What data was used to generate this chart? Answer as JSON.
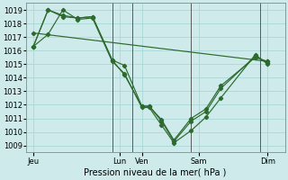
{
  "xlabel": "Pression niveau de la mer( hPa )",
  "bg_color": "#ceeaea",
  "grid_color": "#a8d8d8",
  "line_color": "#2d6a2d",
  "vline_color": "#5a5a5a",
  "ylim": [
    1008.5,
    1019.5
  ],
  "yticks": [
    1009,
    1010,
    1011,
    1012,
    1013,
    1014,
    1015,
    1016,
    1017,
    1018,
    1019
  ],
  "xlim": [
    0,
    10.5
  ],
  "day_labels": [
    "Jeu",
    "Lun",
    "Ven",
    "Sam",
    "Dim"
  ],
  "day_positions": [
    0.3,
    3.8,
    4.7,
    7.0,
    9.8
  ],
  "vline_positions": [
    3.5,
    4.3,
    6.7,
    9.5
  ],
  "series_x": [
    [
      0.3,
      0.9,
      1.5,
      2.1,
      2.7,
      3.5,
      4.0,
      4.7,
      5.0,
      5.5,
      6.0,
      6.7,
      7.3,
      7.9,
      9.3,
      9.8
    ],
    [
      0.3,
      0.9,
      1.5,
      2.1,
      2.7,
      3.5,
      4.0,
      4.7,
      5.0,
      5.5,
      6.0,
      6.7,
      7.3,
      7.9,
      9.3,
      9.8
    ],
    [
      0.3,
      0.9,
      1.5,
      2.1,
      2.7,
      3.5,
      4.0,
      4.7,
      5.0,
      5.5,
      6.0,
      6.7,
      7.3,
      7.9,
      9.3,
      9.8
    ],
    [
      0.3,
      9.8
    ]
  ],
  "series_y": [
    [
      1016.3,
      1017.2,
      1019.0,
      1018.3,
      1018.4,
      1015.2,
      1014.3,
      1011.8,
      1011.8,
      1010.5,
      1009.2,
      1010.1,
      1011.1,
      1012.5,
      1015.7,
      1015.0
    ],
    [
      1016.3,
      1019.0,
      1018.5,
      1018.4,
      1018.5,
      1015.3,
      1014.9,
      1011.9,
      1011.9,
      1010.8,
      1009.3,
      1010.8,
      1011.5,
      1013.2,
      1015.6,
      1015.1
    ],
    [
      1016.3,
      1019.0,
      1018.6,
      1018.4,
      1018.5,
      1015.3,
      1014.2,
      1011.9,
      1011.9,
      1010.9,
      1009.4,
      1011.0,
      1011.7,
      1013.4,
      1015.5,
      1015.2
    ],
    [
      1017.3,
      1015.2
    ]
  ],
  "fontsize": 7,
  "tick_fontsize": 6,
  "marker": "D",
  "marker_size": 2.2,
  "linewidth": 0.85
}
